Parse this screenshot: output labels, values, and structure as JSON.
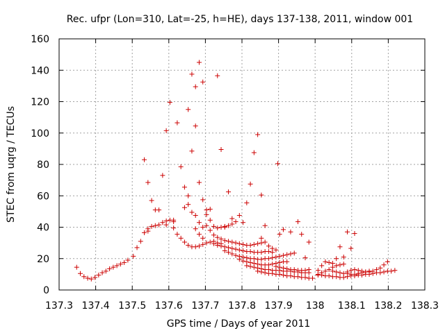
{
  "chart_data": {
    "type": "scatter",
    "title": "Rec. ufpr (Lon=310, Lat=-25, h=HE), days 137-138, 2011, window 001",
    "xlabel": "GPS time / Days of year 2011",
    "ylabel": "STEC from uqrg / TECUs",
    "xlim": [
      137.3,
      138.3
    ],
    "ylim": [
      0,
      160
    ],
    "x_ticks": [
      137.3,
      137.4,
      137.5,
      137.6,
      137.7,
      137.8,
      137.9,
      138.0,
      138.1,
      138.2,
      138.3
    ],
    "x_tick_labels": [
      "137.3",
      "137.4",
      "137.5",
      "137.6",
      "137.7",
      "137.8",
      "137.9",
      "138",
      "138.1",
      "138.2",
      "138.3"
    ],
    "y_ticks": [
      0,
      20,
      40,
      60,
      80,
      100,
      120,
      140,
      160
    ],
    "y_tick_labels": [
      "0",
      "20",
      "40",
      "60",
      "80",
      "100",
      "120",
      "140",
      "160"
    ],
    "grid": true,
    "marker": "+",
    "series": [
      {
        "name": "STEC",
        "color": "#cc0000",
        "points": [
          [
            137.348,
            14.5
          ],
          [
            137.358,
            10.5
          ],
          [
            137.368,
            8.5
          ],
          [
            137.378,
            7.5
          ],
          [
            137.388,
            7.0
          ],
          [
            137.398,
            8.0
          ],
          [
            137.408,
            9.5
          ],
          [
            137.418,
            11.0
          ],
          [
            137.428,
            12.0
          ],
          [
            137.438,
            13.5
          ],
          [
            137.448,
            14.5
          ],
          [
            137.458,
            15.5
          ],
          [
            137.468,
            16.5
          ],
          [
            137.478,
            17.5
          ],
          [
            137.488,
            19.0
          ],
          [
            137.503,
            21.5
          ],
          [
            137.513,
            27.0
          ],
          [
            137.523,
            31.0
          ],
          [
            137.533,
            36.5
          ],
          [
            137.543,
            39.0
          ],
          [
            137.553,
            40.5
          ],
          [
            137.563,
            41.0
          ],
          [
            137.573,
            41.5
          ],
          [
            137.583,
            43.0
          ],
          [
            137.593,
            44.0
          ],
          [
            137.603,
            44.5
          ],
          [
            137.613,
            44.5
          ],
          [
            137.623,
            35.5
          ],
          [
            137.633,
            33.0
          ],
          [
            137.643,
            30.5
          ],
          [
            137.653,
            28.5
          ],
          [
            137.663,
            27.5
          ],
          [
            137.673,
            27.5
          ],
          [
            137.683,
            28.0
          ],
          [
            137.693,
            29.0
          ],
          [
            137.703,
            30.0
          ],
          [
            137.713,
            30.5
          ],
          [
            137.723,
            31.0
          ],
          [
            137.733,
            30.0
          ],
          [
            137.743,
            29.5
          ],
          [
            137.533,
            83.0
          ],
          [
            137.543,
            68.5
          ],
          [
            137.553,
            57.0
          ],
          [
            137.563,
            51.0
          ],
          [
            137.573,
            51.0
          ],
          [
            137.583,
            73.0
          ],
          [
            137.593,
            101.5
          ],
          [
            137.603,
            119.5
          ],
          [
            137.613,
            43.5
          ],
          [
            137.623,
            106.5
          ],
          [
            137.633,
            78.5
          ],
          [
            137.643,
            52.5
          ],
          [
            137.653,
            115.0
          ],
          [
            137.663,
            137.5
          ],
          [
            137.673,
            129.5
          ],
          [
            137.683,
            145.0
          ],
          [
            137.693,
            132.5
          ],
          [
            137.703,
            51.0
          ],
          [
            137.713,
            51.5
          ],
          [
            137.733,
            136.5
          ],
          [
            137.743,
            89.5
          ],
          [
            137.753,
            40.0
          ],
          [
            137.763,
            62.5
          ],
          [
            137.773,
            45.5
          ],
          [
            137.783,
            43.5
          ],
          [
            137.793,
            47.5
          ],
          [
            137.803,
            43.0
          ],
          [
            137.813,
            55.5
          ],
          [
            137.823,
            67.5
          ],
          [
            137.833,
            87.5
          ],
          [
            137.843,
            99.0
          ],
          [
            137.853,
            60.5
          ],
          [
            137.863,
            41.0
          ],
          [
            137.898,
            80.5
          ],
          [
            137.543,
            37.5
          ],
          [
            137.593,
            41.5
          ],
          [
            137.613,
            39.5
          ],
          [
            137.643,
            65.5
          ],
          [
            137.653,
            60.0
          ],
          [
            137.663,
            88.5
          ],
          [
            137.673,
            104.5
          ],
          [
            137.683,
            68.5
          ],
          [
            137.693,
            57.5
          ],
          [
            137.653,
            54.5
          ],
          [
            137.663,
            49.5
          ],
          [
            137.673,
            47.5
          ],
          [
            137.683,
            43.0
          ],
          [
            137.693,
            40.0
          ],
          [
            137.703,
            48.0
          ],
          [
            137.713,
            44.5
          ],
          [
            137.723,
            40.5
          ],
          [
            137.733,
            39.5
          ],
          [
            137.743,
            40.0
          ],
          [
            137.753,
            40.5
          ],
          [
            137.763,
            41.0
          ],
          [
            137.773,
            42.0
          ],
          [
            137.673,
            39.0
          ],
          [
            137.683,
            35.5
          ],
          [
            137.693,
            33.0
          ],
          [
            137.703,
            41.0
          ],
          [
            137.713,
            38.0
          ],
          [
            137.723,
            35.0
          ],
          [
            137.733,
            33.5
          ],
          [
            137.743,
            32.5
          ],
          [
            137.753,
            31.5
          ],
          [
            137.763,
            31.0
          ],
          [
            137.773,
            30.5
          ],
          [
            137.783,
            30.0
          ],
          [
            137.793,
            29.5
          ],
          [
            137.803,
            29.0
          ],
          [
            137.813,
            28.5
          ],
          [
            137.823,
            28.5
          ],
          [
            137.833,
            29.0
          ],
          [
            137.843,
            29.5
          ],
          [
            137.853,
            30.0
          ],
          [
            137.723,
            29.5
          ],
          [
            137.733,
            28.5
          ],
          [
            137.743,
            28.0
          ],
          [
            137.753,
            27.5
          ],
          [
            137.763,
            27.0
          ],
          [
            137.773,
            26.5
          ],
          [
            137.783,
            26.0
          ],
          [
            137.793,
            25.5
          ],
          [
            137.803,
            25.0
          ],
          [
            137.813,
            24.5
          ],
          [
            137.823,
            24.5
          ],
          [
            137.833,
            24.0
          ],
          [
            137.843,
            24.0
          ],
          [
            137.853,
            24.0
          ],
          [
            137.863,
            24.5
          ],
          [
            137.873,
            24.5
          ],
          [
            137.883,
            24.0
          ],
          [
            137.753,
            25.0
          ],
          [
            137.763,
            24.0
          ],
          [
            137.773,
            23.0
          ],
          [
            137.783,
            22.0
          ],
          [
            137.793,
            21.5
          ],
          [
            137.803,
            21.0
          ],
          [
            137.813,
            20.5
          ],
          [
            137.823,
            20.0
          ],
          [
            137.833,
            20.0
          ],
          [
            137.843,
            19.5
          ],
          [
            137.853,
            19.5
          ],
          [
            137.863,
            20.0
          ],
          [
            137.873,
            20.0
          ],
          [
            137.883,
            20.5
          ],
          [
            137.893,
            21.0
          ],
          [
            137.903,
            21.5
          ],
          [
            137.913,
            22.0
          ],
          [
            137.923,
            22.5
          ],
          [
            137.933,
            23.0
          ],
          [
            137.943,
            23.5
          ],
          [
            137.793,
            19.5
          ],
          [
            137.803,
            18.5
          ],
          [
            137.813,
            18.0
          ],
          [
            137.823,
            17.5
          ],
          [
            137.833,
            17.0
          ],
          [
            137.843,
            16.5
          ],
          [
            137.853,
            16.0
          ],
          [
            137.863,
            16.0
          ],
          [
            137.873,
            16.0
          ],
          [
            137.883,
            16.5
          ],
          [
            137.893,
            17.0
          ],
          [
            137.903,
            17.5
          ],
          [
            137.913,
            18.0
          ],
          [
            137.923,
            18.0
          ],
          [
            137.813,
            15.5
          ],
          [
            137.823,
            15.0
          ],
          [
            137.833,
            14.5
          ],
          [
            137.843,
            14.0
          ],
          [
            137.853,
            13.5
          ],
          [
            137.863,
            13.0
          ],
          [
            137.873,
            13.0
          ],
          [
            137.883,
            12.5
          ],
          [
            137.893,
            12.5
          ],
          [
            137.903,
            12.5
          ],
          [
            137.913,
            12.0
          ],
          [
            137.923,
            12.0
          ],
          [
            137.933,
            12.0
          ],
          [
            137.943,
            11.5
          ],
          [
            137.953,
            11.5
          ],
          [
            137.963,
            11.0
          ],
          [
            137.973,
            11.0
          ],
          [
            137.983,
            11.0
          ],
          [
            137.843,
            12.0
          ],
          [
            137.853,
            11.5
          ],
          [
            137.863,
            11.0
          ],
          [
            137.873,
            10.5
          ],
          [
            137.883,
            10.5
          ],
          [
            137.893,
            10.0
          ],
          [
            137.903,
            10.0
          ],
          [
            137.913,
            9.5
          ],
          [
            137.923,
            9.0
          ],
          [
            137.933,
            9.0
          ],
          [
            137.943,
            8.5
          ],
          [
            137.953,
            8.5
          ],
          [
            137.963,
            8.0
          ],
          [
            137.973,
            8.0
          ],
          [
            137.983,
            7.5
          ],
          [
            137.993,
            7.5
          ],
          [
            137.853,
            33.0
          ],
          [
            137.863,
            30.5
          ],
          [
            137.873,
            28.0
          ],
          [
            137.883,
            26.5
          ],
          [
            137.893,
            25.5
          ],
          [
            137.903,
            35.5
          ],
          [
            137.913,
            38.5
          ],
          [
            137.933,
            37.0
          ],
          [
            137.953,
            43.5
          ],
          [
            137.963,
            35.5
          ],
          [
            137.973,
            20.5
          ],
          [
            137.983,
            30.5
          ],
          [
            137.893,
            15.0
          ],
          [
            137.903,
            14.5
          ],
          [
            137.913,
            14.0
          ],
          [
            137.923,
            13.5
          ],
          [
            137.933,
            13.0
          ],
          [
            137.943,
            13.0
          ],
          [
            137.953,
            12.5
          ],
          [
            137.963,
            12.5
          ],
          [
            137.973,
            12.5
          ],
          [
            137.983,
            13.0
          ],
          [
            138.008,
            10.0
          ],
          [
            138.018,
            11.0
          ],
          [
            138.028,
            12.0
          ],
          [
            138.038,
            13.0
          ],
          [
            138.048,
            14.5
          ],
          [
            138.058,
            15.5
          ],
          [
            138.068,
            16.0
          ],
          [
            138.078,
            16.5
          ],
          [
            138.008,
            12.5
          ],
          [
            138.018,
            15.5
          ],
          [
            138.028,
            18.0
          ],
          [
            138.038,
            17.5
          ],
          [
            138.048,
            17.0
          ],
          [
            138.058,
            20.0
          ],
          [
            138.068,
            27.5
          ],
          [
            138.078,
            21.0
          ],
          [
            138.088,
            37.0
          ],
          [
            138.098,
            26.5
          ],
          [
            138.108,
            36.0
          ],
          [
            138.008,
            9.5
          ],
          [
            138.018,
            9.5
          ],
          [
            138.028,
            9.0
          ],
          [
            138.038,
            9.0
          ],
          [
            138.048,
            8.5
          ],
          [
            138.058,
            8.5
          ],
          [
            138.068,
            8.0
          ],
          [
            138.078,
            8.0
          ],
          [
            138.088,
            8.5
          ],
          [
            138.098,
            9.0
          ],
          [
            138.108,
            9.0
          ],
          [
            138.118,
            9.5
          ],
          [
            138.128,
            9.5
          ],
          [
            138.138,
            10.0
          ],
          [
            138.148,
            10.0
          ],
          [
            138.158,
            10.5
          ],
          [
            138.168,
            11.0
          ],
          [
            138.178,
            11.0
          ],
          [
            138.188,
            11.5
          ],
          [
            138.198,
            12.0
          ],
          [
            138.208,
            12.0
          ],
          [
            138.218,
            12.5
          ],
          [
            138.088,
            11.5
          ],
          [
            138.098,
            12.5
          ],
          [
            138.108,
            13.0
          ],
          [
            138.118,
            12.5
          ],
          [
            138.128,
            12.0
          ],
          [
            138.138,
            11.5
          ],
          [
            138.148,
            11.5
          ],
          [
            138.158,
            12.0
          ],
          [
            138.168,
            13.0
          ],
          [
            138.178,
            14.0
          ],
          [
            138.188,
            16.0
          ],
          [
            138.198,
            18.0
          ],
          [
            138.048,
            12.0
          ],
          [
            138.058,
            11.5
          ],
          [
            138.068,
            11.0
          ],
          [
            138.078,
            10.5
          ],
          [
            138.088,
            10.5
          ],
          [
            138.098,
            10.0
          ],
          [
            138.108,
            10.0
          ],
          [
            138.118,
            10.5
          ],
          [
            138.128,
            11.0
          ],
          [
            138.138,
            11.5
          ],
          [
            138.148,
            12.0
          ]
        ]
      }
    ]
  }
}
